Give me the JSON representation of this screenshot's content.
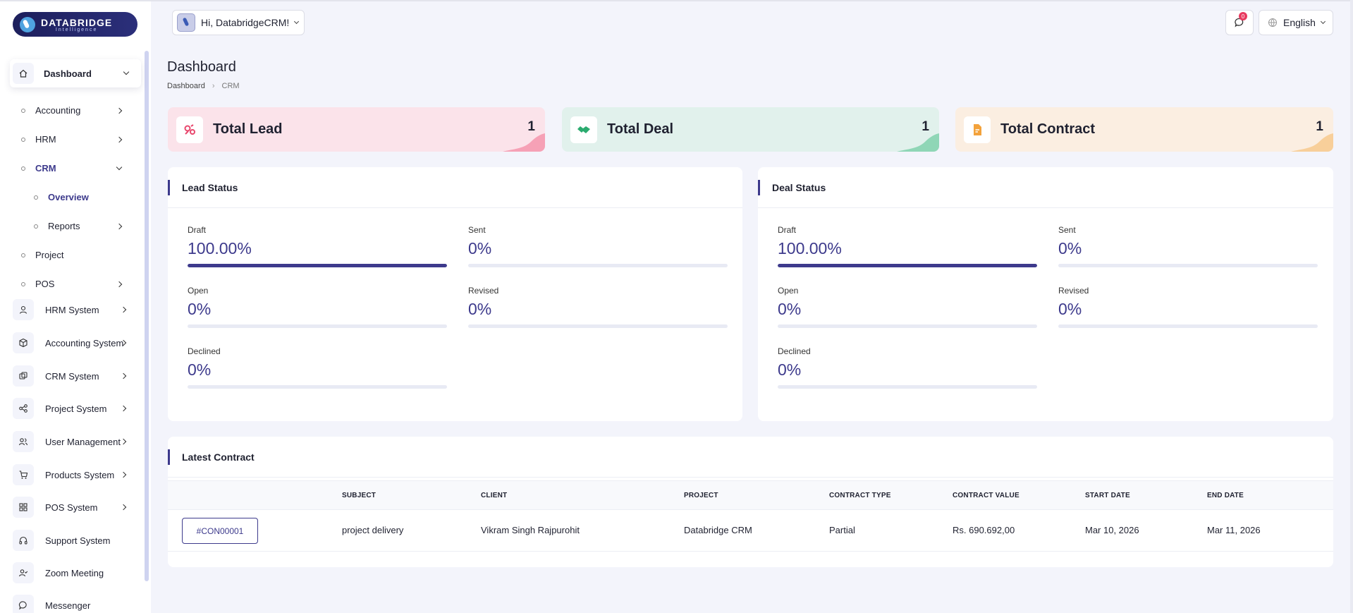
{
  "brand": {
    "name": "DATABRIDGE",
    "tagline": "Intelligence"
  },
  "header": {
    "greeting": "Hi, DatabridgeCRM!",
    "notifications_count": "0",
    "language": "English"
  },
  "sidebar": {
    "dashboard": "Dashboard",
    "dashboard_children": [
      "Accounting",
      "HRM",
      "CRM",
      "Project",
      "POS"
    ],
    "crm_children": [
      "Overview",
      "Reports"
    ],
    "systems": [
      "HRM System",
      "Accounting System",
      "CRM System",
      "Project System",
      "User Management",
      "Products System",
      "POS System",
      "Support System",
      "Zoom Meeting",
      "Messenger"
    ]
  },
  "page": {
    "title": "Dashboard",
    "breadcrumb": [
      "Dashboard",
      "CRM"
    ]
  },
  "stats": [
    {
      "label": "Total Lead",
      "value": "1",
      "accent": "#f6a1b6"
    },
    {
      "label": "Total Deal",
      "value": "1",
      "accent": "#8fd6b6"
    },
    {
      "label": "Total Contract",
      "value": "1",
      "accent": "#f8cf9a"
    }
  ],
  "lead_status": {
    "title": "Lead Status",
    "items": [
      {
        "label": "Draft",
        "value": "100.00%",
        "fill": 100
      },
      {
        "label": "Sent",
        "value": "0%",
        "fill": 0
      },
      {
        "label": "Open",
        "value": "0%",
        "fill": 0
      },
      {
        "label": "Revised",
        "value": "0%",
        "fill": 0
      },
      {
        "label": "Declined",
        "value": "0%",
        "fill": 0
      }
    ]
  },
  "deal_status": {
    "title": "Deal Status",
    "items": [
      {
        "label": "Draft",
        "value": "100.00%",
        "fill": 100
      },
      {
        "label": "Sent",
        "value": "0%",
        "fill": 0
      },
      {
        "label": "Open",
        "value": "0%",
        "fill": 0
      },
      {
        "label": "Revised",
        "value": "0%",
        "fill": 0
      },
      {
        "label": "Declined",
        "value": "0%",
        "fill": 0
      }
    ]
  },
  "latest_contract": {
    "title": "Latest Contract",
    "columns": [
      "SUBJECT",
      "CLIENT",
      "PROJECT",
      "CONTRACT TYPE",
      "CONTRACT VALUE",
      "START DATE",
      "END DATE"
    ],
    "rows": [
      {
        "id": "#CON00001",
        "subject": "project delivery",
        "client": "Vikram Singh Rajpurohit",
        "project": "Databridge CRM",
        "type": "Partial",
        "value": "Rs. 690.692,00",
        "start": "Mar 10, 2026",
        "end": "Mar 11, 2026"
      }
    ]
  },
  "colors": {
    "primary": "#3d3a8c",
    "background": "#f3f4fb"
  }
}
